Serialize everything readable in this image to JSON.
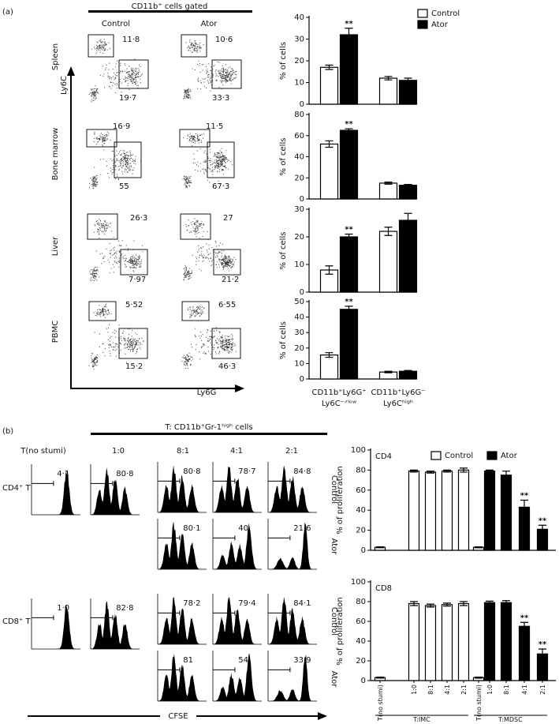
{
  "panel_a": {
    "label": "(a)",
    "gating": "CD11b⁺ cells gated",
    "columns": [
      "Control",
      "Ator"
    ],
    "y_axis": "Ly6C",
    "x_axis": "Ly6G",
    "rows": [
      {
        "tissue": "Spleen",
        "control": [
          "11·8",
          "19·7"
        ],
        "ator": [
          "10·6",
          "33·3"
        ]
      },
      {
        "tissue": "Bone marrow",
        "control": [
          "16·9",
          "55"
        ],
        "ator": [
          "11·5",
          "67·3"
        ]
      },
      {
        "tissue": "Liver",
        "control": [
          "26·3",
          "7·97"
        ],
        "ator": [
          "27",
          "21·2"
        ]
      },
      {
        "tissue": "PBMC",
        "control": [
          "5·52",
          "15·2"
        ],
        "ator": [
          "6·55",
          "46·3"
        ]
      }
    ]
  },
  "panel_b": {
    "label": "(b)",
    "treatment": "T: CD11b⁺Gr-1ʰⁱᵍʰ cells",
    "columns": [
      "T(no stumi)",
      "1:0",
      "8:1",
      "4:1",
      "2:1"
    ],
    "row_groups": [
      "Control",
      "Ator"
    ],
    "x_axis": "CFSE",
    "cells": [
      {
        "label": "CD4⁺ T",
        "baseline": [
          "4·1",
          "80·8"
        ],
        "control": [
          "80·8",
          "78·7",
          "84·8"
        ],
        "ator": [
          "80·1",
          "40",
          "21·6"
        ]
      },
      {
        "label": "CD8⁺ T",
        "baseline": [
          "1·0",
          "82·8"
        ],
        "control": [
          "78·2",
          "79·4",
          "84·1"
        ],
        "ator": [
          "81",
          "54",
          "33·9"
        ]
      }
    ]
  },
  "chart_data": [
    {
      "type": "bar",
      "ylabel": "% of cells",
      "categories": [
        null,
        null
      ],
      "series": [
        {
          "name": "Control",
          "color": "#ffffff",
          "values": [
            17,
            12
          ],
          "errors": [
            1,
            0.8
          ]
        },
        {
          "name": "Ator",
          "color": "#000000",
          "values": [
            32,
            11
          ],
          "errors": [
            3,
            1
          ],
          "significance": [
            "**",
            null
          ]
        }
      ],
      "ylim": [
        0,
        40
      ],
      "yticks": [
        0,
        10,
        20,
        30,
        40
      ],
      "legend": "top-right"
    },
    {
      "type": "bar",
      "ylabel": "% of cells",
      "categories": [
        null,
        null
      ],
      "series": [
        {
          "color": "#ffffff",
          "values": [
            52,
            15
          ],
          "errors": [
            3,
            1
          ]
        },
        {
          "color": "#000000",
          "values": [
            65,
            13
          ],
          "errors": [
            1.5,
            0.8
          ],
          "significance": [
            "**",
            null
          ]
        }
      ],
      "ylim": [
        0,
        80
      ],
      "yticks": [
        0,
        20,
        40,
        60,
        80
      ]
    },
    {
      "type": "bar",
      "ylabel": "% of cells",
      "categories": [
        null,
        null
      ],
      "series": [
        {
          "color": "#ffffff",
          "values": [
            8,
            22
          ],
          "errors": [
            1.5,
            1.5
          ]
        },
        {
          "color": "#000000",
          "values": [
            20,
            26
          ],
          "errors": [
            1,
            2.5
          ],
          "significance": [
            "**",
            null
          ]
        }
      ],
      "ylim": [
        0,
        30
      ],
      "yticks": [
        0,
        10,
        20,
        30
      ]
    },
    {
      "type": "bar",
      "ylabel": "% of cells",
      "categories": [
        [
          "CD11b⁺Ly6G⁺",
          "Ly6C⁻ᐟˡᵒʷ"
        ],
        [
          "CD11b⁺Ly6G⁻",
          "Ly6Cʰⁱᵍʰ"
        ]
      ],
      "series": [
        {
          "color": "#ffffff",
          "values": [
            15.5,
            4.5
          ],
          "errors": [
            1.5,
            0.5
          ]
        },
        {
          "color": "#000000",
          "values": [
            45,
            5
          ],
          "errors": [
            2,
            0.5
          ],
          "significance": [
            "**",
            null
          ]
        }
      ],
      "ylim": [
        0,
        50
      ],
      "yticks": [
        0,
        10,
        20,
        30,
        40,
        50
      ]
    },
    {
      "type": "bar",
      "title": "CD4",
      "ylabel": "% of proliferation",
      "categories": [
        null,
        null,
        null,
        null,
        null,
        null,
        null,
        null,
        null,
        null
      ],
      "series": [
        {
          "name": "Control",
          "color": "#ffffff",
          "values": [
            3,
            79,
            78,
            79,
            80,
            3,
            null,
            null,
            null,
            null
          ],
          "errors": [
            0.5,
            1,
            1,
            1,
            2,
            0.5,
            null,
            null,
            null,
            null
          ]
        },
        {
          "name": "Ator",
          "color": "#000000",
          "values": [
            null,
            null,
            null,
            null,
            null,
            null,
            79,
            75,
            43,
            21
          ],
          "errors": [
            null,
            null,
            null,
            null,
            null,
            null,
            1,
            4,
            7,
            4
          ],
          "significance": [
            null,
            null,
            null,
            null,
            null,
            null,
            null,
            null,
            "**",
            "**"
          ]
        }
      ],
      "ylim": [
        0,
        100
      ],
      "yticks": [
        0,
        20,
        40,
        60,
        80,
        100
      ],
      "legend": "top"
    },
    {
      "type": "bar",
      "title": "CD8",
      "ylabel": "% of proliferation",
      "categories": [
        "T(no stumi)",
        "1:0",
        "8:1",
        "4:1",
        "2:1",
        "T(no stumi)",
        "1:0",
        "8:1",
        "4:1",
        "2:1"
      ],
      "groups": [
        "T:IMC",
        "T:MDSC"
      ],
      "series": [
        {
          "color": "#ffffff",
          "values": [
            3,
            78,
            76,
            77,
            78,
            3,
            null,
            null,
            null,
            null
          ],
          "errors": [
            0.5,
            2,
            1.5,
            1.5,
            2,
            0.5,
            null,
            null,
            null,
            null
          ]
        },
        {
          "color": "#000000",
          "values": [
            null,
            null,
            null,
            null,
            null,
            null,
            79,
            79,
            55,
            27
          ],
          "errors": [
            null,
            null,
            null,
            null,
            null,
            null,
            1.5,
            2,
            4,
            5
          ],
          "significance": [
            null,
            null,
            null,
            null,
            null,
            null,
            null,
            null,
            "**",
            "**"
          ]
        }
      ],
      "ylim": [
        0,
        100
      ],
      "yticks": [
        0,
        20,
        40,
        60,
        80,
        100
      ]
    }
  ]
}
